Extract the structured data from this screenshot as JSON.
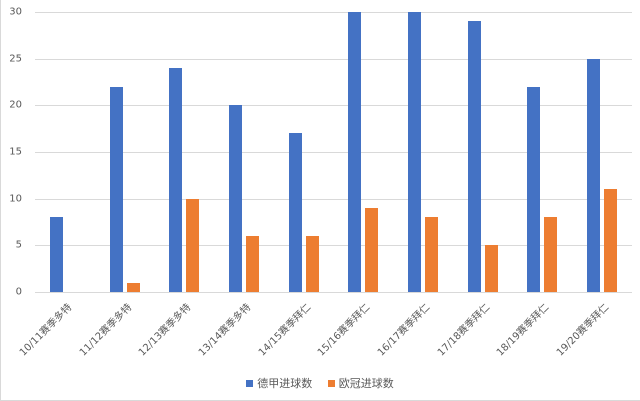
{
  "chart_data": {
    "type": "bar",
    "title": "",
    "xlabel": "",
    "ylabel": "",
    "ylim": [
      0,
      30
    ],
    "yticks": [
      0,
      5,
      10,
      15,
      20,
      25,
      30
    ],
    "grid": true,
    "legend_position": "bottom",
    "categories": [
      "10/11赛季多特",
      "11/12赛季多特",
      "12/13赛季多特",
      "13/14赛季多特",
      "14/15赛季拜仁",
      "15/16赛季拜仁",
      "16/17赛季拜仁",
      "17/18赛季拜仁",
      "18/19赛季拜仁",
      "19/20赛季拜仁"
    ],
    "series": [
      {
        "name": "德甲进球数",
        "color": "#4472C4",
        "values": [
          8,
          22,
          24,
          20,
          17,
          30,
          30,
          29,
          22,
          25
        ]
      },
      {
        "name": "欧冠进球数",
        "color": "#ED7D31",
        "values": [
          0,
          1,
          10,
          6,
          6,
          9,
          8,
          5,
          8,
          11
        ]
      }
    ]
  },
  "legend": {
    "items": [
      {
        "label": "德甲进球数",
        "color": "#4472C4"
      },
      {
        "label": "欧冠进球数",
        "color": "#ED7D31"
      }
    ]
  }
}
